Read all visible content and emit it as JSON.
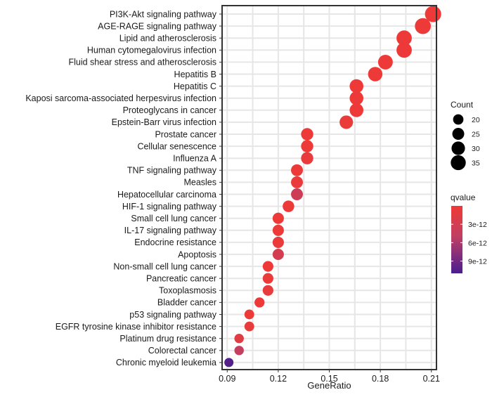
{
  "chart_data": {
    "type": "scatter",
    "subtype": "dot-plot",
    "xlabel": "GeneRatio",
    "xlim": [
      0.087,
      0.213
    ],
    "xticks": [
      0.09,
      0.12,
      0.15,
      0.18,
      0.21
    ],
    "xtick_labels": [
      "0.09",
      "0.12",
      "0.15",
      "0.18",
      "0.21"
    ],
    "grid": true,
    "legend_position": "right",
    "size_legend": {
      "title": "Count",
      "values": [
        20,
        25,
        30,
        35
      ],
      "labels": [
        "20",
        "25",
        "30",
        "35"
      ]
    },
    "color_legend": {
      "title": "qvalue",
      "range": [
        0,
        1.1e-11
      ],
      "ticks": [
        3e-12,
        6e-12,
        9e-12
      ],
      "labels": [
        "3e-12",
        "6e-12",
        "9e-12"
      ],
      "low_color": "#ee3a37",
      "high_color": "#4a1e8f"
    },
    "points": [
      {
        "term": "PI3K-Akt signaling pathway",
        "gene_ratio": 0.211,
        "count": 39,
        "qvalue": 1e-13
      },
      {
        "term": "AGE-RAGE signaling pathway",
        "gene_ratio": 0.205,
        "count": 38,
        "qvalue": 1e-13
      },
      {
        "term": "Lipid and atherosclerosis",
        "gene_ratio": 0.194,
        "count": 36,
        "qvalue": 1e-13
      },
      {
        "term": "Human cytomegalovirus infection",
        "gene_ratio": 0.194,
        "count": 36,
        "qvalue": 1e-13
      },
      {
        "term": "Fluid shear stress and atherosclerosis",
        "gene_ratio": 0.183,
        "count": 34,
        "qvalue": 1e-13
      },
      {
        "term": "Hepatitis B",
        "gene_ratio": 0.177,
        "count": 33,
        "qvalue": 1e-13
      },
      {
        "term": "Hepatitis C",
        "gene_ratio": 0.166,
        "count": 31,
        "qvalue": 1e-13
      },
      {
        "term": "Kaposi sarcoma-associated  herpesvirus infection",
        "gene_ratio": 0.166,
        "count": 31,
        "qvalue": 1e-13
      },
      {
        "term": "Proteoglycans in cancer",
        "gene_ratio": 0.166,
        "count": 31,
        "qvalue": 1e-13
      },
      {
        "term": "Epstein-Barr virus infection",
        "gene_ratio": 0.16,
        "count": 30,
        "qvalue": 3e-13
      },
      {
        "term": "Prostate cancer",
        "gene_ratio": 0.137,
        "count": 26,
        "qvalue": 1e-13
      },
      {
        "term": "Cellular senescence",
        "gene_ratio": 0.137,
        "count": 26,
        "qvalue": 1e-13
      },
      {
        "term": "Influenza A",
        "gene_ratio": 0.137,
        "count": 26,
        "qvalue": 5e-13
      },
      {
        "term": "TNF signaling pathway",
        "gene_ratio": 0.131,
        "count": 25,
        "qvalue": 1e-13
      },
      {
        "term": "Measles",
        "gene_ratio": 0.131,
        "count": 25,
        "qvalue": 4e-13
      },
      {
        "term": "Hepatocellular carcinoma",
        "gene_ratio": 0.131,
        "count": 25,
        "qvalue": 3.5e-12
      },
      {
        "term": "HIF-1 signaling pathway",
        "gene_ratio": 0.126,
        "count": 24,
        "qvalue": 2e-13
      },
      {
        "term": "Small cell lung cancer",
        "gene_ratio": 0.12,
        "count": 23,
        "qvalue": 1e-13
      },
      {
        "term": "IL-17 signaling pathway",
        "gene_ratio": 0.12,
        "count": 23,
        "qvalue": 2e-13
      },
      {
        "term": "Endocrine resistance",
        "gene_ratio": 0.12,
        "count": 23,
        "qvalue": 4e-13
      },
      {
        "term": "Apoptosis",
        "gene_ratio": 0.12,
        "count": 23,
        "qvalue": 2.8e-12
      },
      {
        "term": "Non-small cell lung cancer",
        "gene_ratio": 0.114,
        "count": 21,
        "qvalue": 1e-13
      },
      {
        "term": "Pancreatic cancer",
        "gene_ratio": 0.114,
        "count": 21,
        "qvalue": 2e-13
      },
      {
        "term": "Toxoplasmosis",
        "gene_ratio": 0.114,
        "count": 21,
        "qvalue": 8e-13
      },
      {
        "term": "Bladder cancer",
        "gene_ratio": 0.109,
        "count": 19,
        "qvalue": 1e-13
      },
      {
        "term": "p53 signaling pathway",
        "gene_ratio": 0.103,
        "count": 18,
        "qvalue": 2e-13
      },
      {
        "term": "EGFR tyrosine kinase inhibitor resistance",
        "gene_ratio": 0.103,
        "count": 18,
        "qvalue": 6e-13
      },
      {
        "term": "Platinum drug resistance",
        "gene_ratio": 0.097,
        "count": 17,
        "qvalue": 1.5e-12
      },
      {
        "term": "Colorectal cancer",
        "gene_ratio": 0.097,
        "count": 17,
        "qvalue": 4.5e-12
      },
      {
        "term": "Chronic myeloid leukemia",
        "gene_ratio": 0.091,
        "count": 16,
        "qvalue": 1.05e-11
      }
    ]
  }
}
